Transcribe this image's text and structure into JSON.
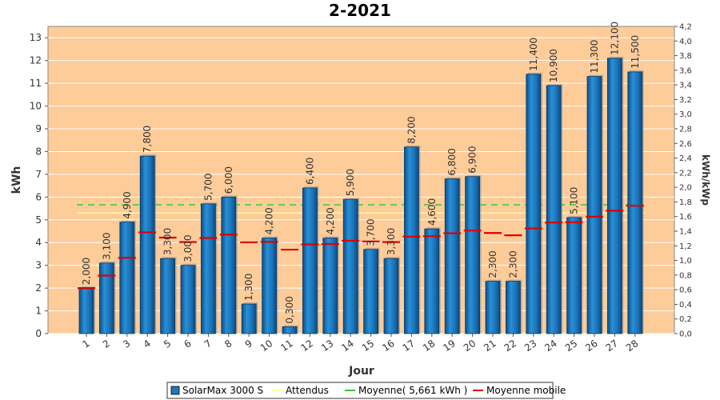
{
  "chart_data": {
    "type": "bar",
    "title": "2-2021",
    "xlabel": "Jour",
    "ylabel": "kWh",
    "y2label": "kWh/kWp",
    "ylim": [
      0,
      13.5
    ],
    "y2lim": [
      0,
      4.2
    ],
    "yticks": [
      "0",
      "1",
      "2",
      "3",
      "4",
      "5",
      "6",
      "7",
      "8",
      "9",
      "10",
      "11",
      "12",
      "13"
    ],
    "y2ticks": [
      "0,0",
      "0,2",
      "0,4",
      "0,6",
      "0,8",
      "1,0",
      "1,2",
      "1,4",
      "1,6",
      "1,8",
      "2,0",
      "2,2",
      "2,4",
      "2,6",
      "2,8",
      "3,0",
      "3,2",
      "3,4",
      "3,6",
      "3,8",
      "4,0",
      "4,2"
    ],
    "categories": [
      "1",
      "2",
      "3",
      "4",
      "5",
      "6",
      "7",
      "8",
      "9",
      "10",
      "11",
      "12",
      "13",
      "14",
      "15",
      "16",
      "17",
      "18",
      "19",
      "20",
      "21",
      "22",
      "23",
      "24",
      "25",
      "26",
      "27",
      "28"
    ],
    "series": [
      {
        "name": "SolarMax 3000 S",
        "type": "bar",
        "color": "#1f77b4",
        "values": [
          2.0,
          3.1,
          4.9,
          7.8,
          3.3,
          3.0,
          5.7,
          6.0,
          1.3,
          4.2,
          0.3,
          6.4,
          4.2,
          5.9,
          3.7,
          3.3,
          8.2,
          4.6,
          6.8,
          6.9,
          2.3,
          2.3,
          11.4,
          10.9,
          5.1,
          11.3,
          12.1,
          11.5
        ],
        "labels": [
          "2,000",
          "3,100",
          "4,900",
          "7,800",
          "3,300",
          "3,000",
          "5,700",
          "6,000",
          "1,300",
          "4,200",
          "0,300",
          "6,400",
          "4,200",
          "5,900",
          "3,700",
          "3,300",
          "8,200",
          "4,600",
          "6,800",
          "6,900",
          "2,300",
          "2,300",
          "11,400",
          "10,900",
          "5,100",
          "11,300",
          "12,100",
          "11,500"
        ]
      },
      {
        "name": "Attendus",
        "type": "line",
        "color": "#ffff99",
        "value": 5.3
      },
      {
        "name": "Moyenne( 5,661 kWh )",
        "type": "line",
        "color": "#33cc33",
        "value": 5.661
      },
      {
        "name": "Moyenne mobile",
        "type": "marker",
        "color": "#dd0000",
        "values": [
          2.0,
          2.55,
          3.33,
          4.45,
          4.22,
          4.02,
          4.2,
          4.35,
          4.01,
          4.03,
          3.69,
          3.92,
          3.94,
          4.08,
          4.05,
          4.02,
          4.26,
          4.28,
          4.41,
          4.53,
          4.42,
          4.32,
          4.62,
          4.88,
          4.89,
          5.14,
          5.4,
          5.62
        ]
      }
    ],
    "legend": {
      "placement": "bottom"
    }
  }
}
